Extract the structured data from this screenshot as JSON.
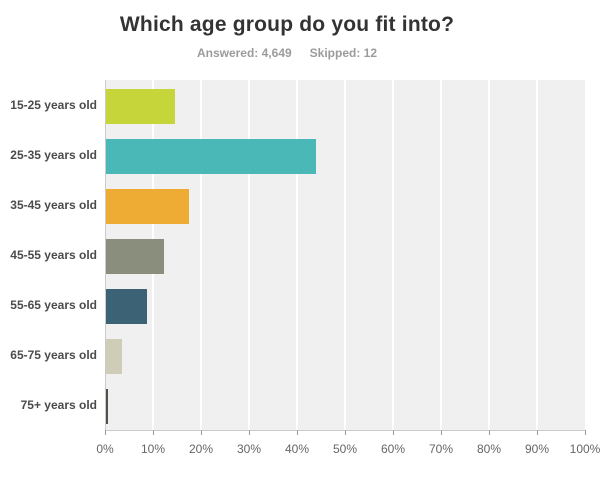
{
  "header": {
    "title": "Which age group do you fit into?",
    "answered_label": "Answered: 4,649",
    "skipped_label": "Skipped: 12"
  },
  "chart_data": {
    "type": "bar",
    "orientation": "horizontal",
    "title": "Which age group do you fit into?",
    "answered": "4,649",
    "skipped": "12",
    "categories": [
      "15-25 years old",
      "25-35 years old",
      "35-45 years old",
      "45-55 years old",
      "55-65 years old",
      "65-75 years old",
      "75+ years old"
    ],
    "values": [
      14.4,
      43.8,
      17.3,
      12.1,
      8.6,
      3.3,
      0.4
    ],
    "value_unit": "%",
    "bar_colors": [
      "#c6d63a",
      "#4bb8b8",
      "#efac34",
      "#8a8e7c",
      "#3b6375",
      "#cfcdb8",
      "#4f5248"
    ],
    "xlabel": "",
    "ylabel": "",
    "xlim": [
      0,
      100
    ],
    "x_tick_labels": [
      "0%",
      "10%",
      "20%",
      "30%",
      "40%",
      "50%",
      "60%",
      "70%",
      "80%",
      "90%",
      "100%"
    ],
    "grid": true,
    "gridline_color": "#ffffff",
    "plot_background": "#f0f0f0",
    "legend": false
  }
}
